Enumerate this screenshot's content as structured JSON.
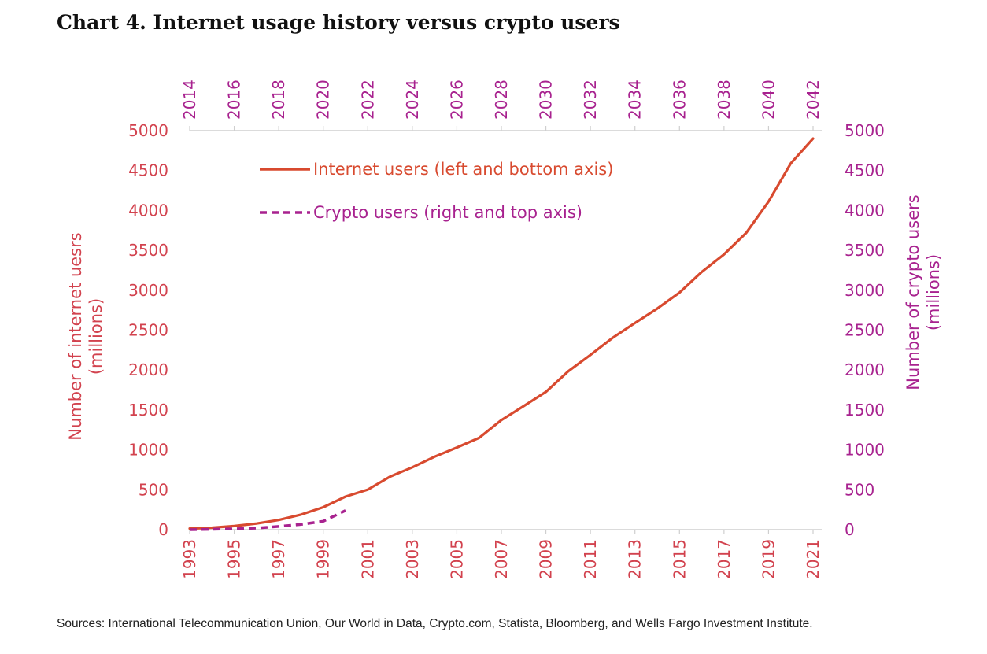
{
  "title": "Chart 4. Internet usage history versus crypto users",
  "source": "Sources: International Telecommunication Union, Our World in Data, Crypto.com, Statista, Bloomberg, and Wells Fargo Investment Institute.",
  "colors": {
    "internet": "#d84a2f",
    "crypto": "#a8228f",
    "left_axis": "#d2424e",
    "right_axis": "#a8228f",
    "axis_line": "#cfcfcf"
  },
  "chart_data": {
    "type": "line",
    "title": "Chart 4. Internet usage history versus crypto users",
    "legend_position": "top-left",
    "grid": false,
    "axes": {
      "bottom": {
        "ticks": [
          "1993",
          "1995",
          "1997",
          "1999",
          "2001",
          "2003",
          "2005",
          "2007",
          "2009",
          "2011",
          "2013",
          "2015",
          "2017",
          "2019",
          "2021"
        ],
        "range": [
          1993,
          2021
        ]
      },
      "top": {
        "ticks": [
          "2014",
          "2016",
          "2018",
          "2020",
          "2022",
          "2024",
          "2026",
          "2028",
          "2030",
          "2032",
          "2034",
          "2036",
          "2038",
          "2040",
          "2042"
        ],
        "range": [
          2014,
          2042
        ]
      },
      "left": {
        "label": "Number of internet uesrs (millions)",
        "label_lines": [
          "Number of internet uesrs",
          "(millions)"
        ],
        "ticks": [
          "0",
          "500",
          "1000",
          "1500",
          "2000",
          "2500",
          "3000",
          "3500",
          "4000",
          "4500",
          "5000"
        ],
        "range": [
          0,
          5000
        ]
      },
      "right": {
        "label": "Number of crypto users (millions)",
        "label_lines": [
          "Number of crypto users",
          "(millions)"
        ],
        "ticks": [
          "0",
          "500",
          "1000",
          "1500",
          "2000",
          "2500",
          "3000",
          "3500",
          "4000",
          "4500",
          "5000"
        ],
        "range": [
          0,
          5000
        ]
      }
    },
    "series": [
      {
        "name": "Internet users (left and bottom axis)",
        "axis": "left-bottom",
        "style": "solid",
        "x": [
          1993,
          1994,
          1995,
          1996,
          1997,
          1998,
          1999,
          2000,
          2001,
          2002,
          2003,
          2004,
          2005,
          2006,
          2007,
          2008,
          2009,
          2010,
          2011,
          2012,
          2013,
          2014,
          2015,
          2016,
          2017,
          2018,
          2019,
          2020,
          2021
        ],
        "y": [
          14,
          25,
          45,
          77,
          121,
          188,
          281,
          414,
          502,
          665,
          781,
          914,
          1030,
          1150,
          1373,
          1548,
          1727,
          1984,
          2189,
          2404,
          2590,
          2770,
          2970,
          3230,
          3450,
          3720,
          4110,
          4590,
          4900
        ]
      },
      {
        "name": "Crypto users (right and top axis)",
        "axis": "right-top",
        "style": "dashed",
        "x": [
          2014,
          2015,
          2016,
          2017,
          2018,
          2019,
          2020,
          2021
        ],
        "y": [
          0,
          5,
          10,
          20,
          40,
          66,
          106,
          240
        ]
      }
    ]
  }
}
